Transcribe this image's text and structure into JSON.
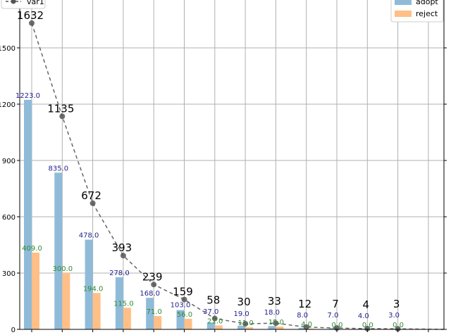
{
  "chart_data": {
    "type": "bar",
    "categories": [
      "",
      "",
      "",
      "",
      "",
      "",
      "",
      "",
      "",
      "",
      "",
      "",
      "",
      ""
    ],
    "series": [
      {
        "name": "adopt",
        "type": "bar",
        "color": "#8fbbd9",
        "label_color": "#1f1f8f",
        "values": [
          1223,
          835,
          478,
          278,
          168,
          103,
          37,
          19,
          18,
          8,
          7,
          4,
          3,
          null
        ]
      },
      {
        "name": "reject",
        "type": "bar",
        "color": "#ffbf86",
        "label_color": "#2e8b2e",
        "values": [
          409,
          300,
          194,
          115,
          71,
          56,
          21,
          11,
          15,
          4,
          0,
          0,
          0,
          null
        ]
      },
      {
        "name": "var1",
        "type": "line",
        "color": "#555555",
        "style": "dashed",
        "marker": "circle",
        "values": [
          1632,
          1135,
          672,
          393,
          239,
          159,
          58,
          30,
          33,
          12,
          7,
          4,
          3,
          null
        ]
      }
    ],
    "yticks": [
      0,
      300,
      600,
      900,
      1200,
      1500
    ],
    "ylim": [
      0,
      1755
    ],
    "grid": true,
    "legend": [
      {
        "position": "top-left",
        "entries": [
          "var1"
        ]
      },
      {
        "position": "top-right",
        "entries": [
          "adopt",
          "reject"
        ]
      }
    ]
  }
}
